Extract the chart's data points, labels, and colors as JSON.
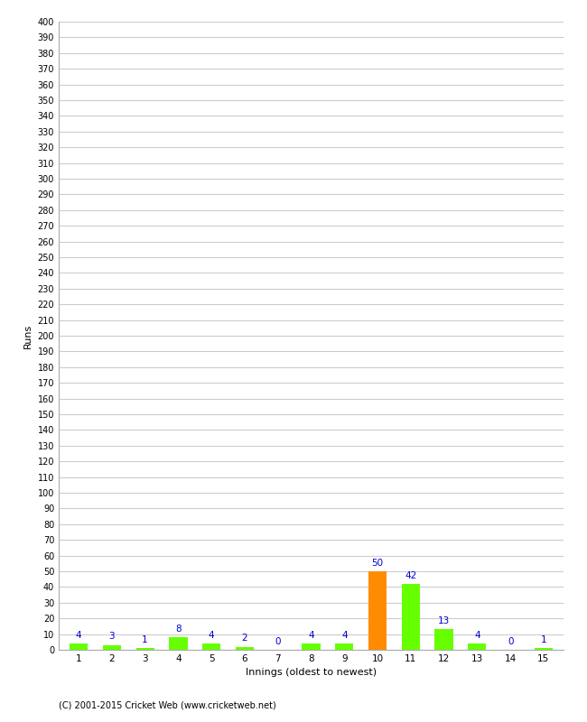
{
  "xlabel": "Innings (oldest to newest)",
  "ylabel": "Runs",
  "categories": [
    1,
    2,
    3,
    4,
    5,
    6,
    7,
    8,
    9,
    10,
    11,
    12,
    13,
    14,
    15
  ],
  "values": [
    4,
    3,
    1,
    8,
    4,
    2,
    0,
    4,
    4,
    50,
    42,
    13,
    4,
    0,
    1
  ],
  "bar_colors": [
    "#66ff00",
    "#66ff00",
    "#66ff00",
    "#66ff00",
    "#66ff00",
    "#66ff00",
    "#66ff00",
    "#66ff00",
    "#66ff00",
    "#ff8c00",
    "#66ff00",
    "#66ff00",
    "#66ff00",
    "#66ff00",
    "#66ff00"
  ],
  "ylim": [
    0,
    400
  ],
  "ytick_step": 10,
  "label_color": "#0000cc",
  "grid_color": "#cccccc",
  "background_color": "#ffffff",
  "footer": "(C) 2001-2015 Cricket Web (www.cricketweb.net)",
  "bar_width": 0.55
}
